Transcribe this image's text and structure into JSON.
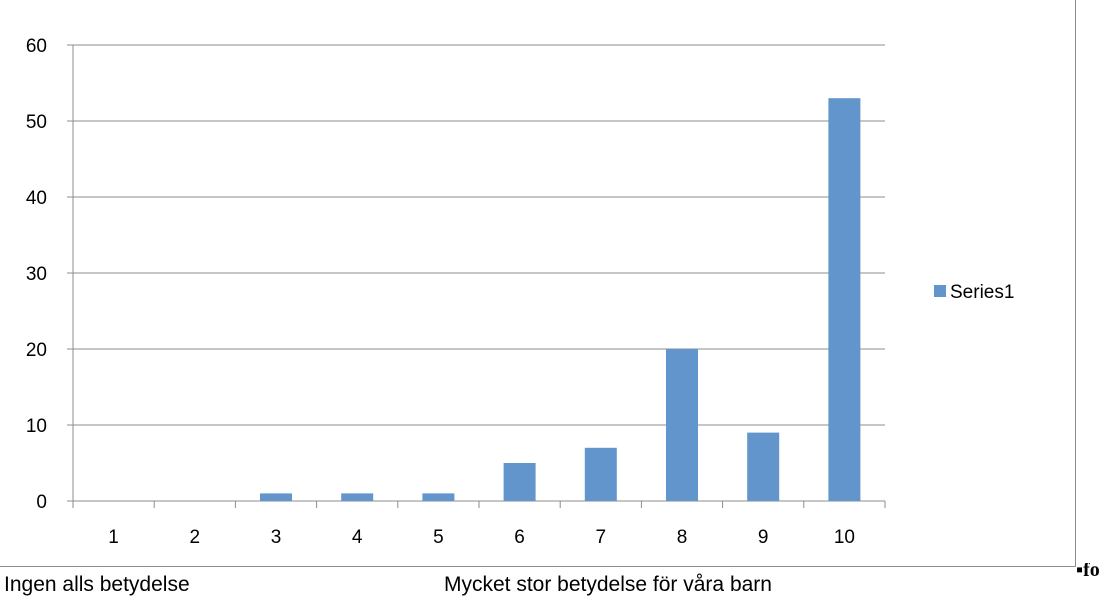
{
  "chart_data": {
    "type": "bar",
    "categories": [
      "1",
      "2",
      "3",
      "4",
      "5",
      "6",
      "7",
      "8",
      "9",
      "10"
    ],
    "series": [
      {
        "name": "Series1",
        "values": [
          0,
          0,
          1,
          1,
          1,
          5,
          7,
          20,
          9,
          53
        ],
        "color": "#6195cb"
      }
    ],
    "ylim": [
      0,
      60
    ],
    "yticks": [
      0,
      10,
      20,
      30,
      40,
      50,
      60
    ],
    "grid": true,
    "legend": "right"
  },
  "captions": {
    "left": "Ingen alls betydelse",
    "right": "Mycket stor betydelse för våra barn"
  }
}
